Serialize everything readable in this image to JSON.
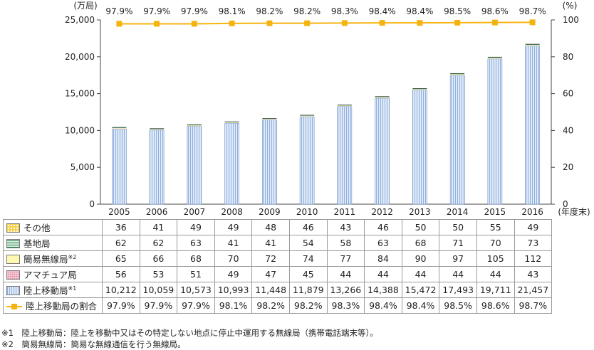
{
  "left_unit": "(万局)",
  "right_unit": "(%)",
  "x_unit": "(年度末)",
  "chart_data": {
    "type": "bar",
    "stacked": true,
    "categories": [
      "2005",
      "2006",
      "2007",
      "2008",
      "2009",
      "2010",
      "2011",
      "2012",
      "2013",
      "2014",
      "2015",
      "2016"
    ],
    "ylim": [
      0,
      25000
    ],
    "yticks": [
      "0",
      "5,000",
      "10,000",
      "15,000",
      "20,000",
      "25,000"
    ],
    "y2lim": [
      0,
      100
    ],
    "y2ticks": [
      "0",
      "20",
      "40",
      "60",
      "80",
      "100"
    ],
    "series": [
      {
        "name": "陸上移動局",
        "values": [
          10212,
          10059,
          10573,
          10993,
          11448,
          11879,
          13266,
          14388,
          15472,
          17493,
          19711,
          21457
        ],
        "color": "#9bb8e6"
      },
      {
        "name": "アマチュア局",
        "values": [
          56,
          53,
          51,
          49,
          47,
          45,
          44,
          44,
          44,
          44,
          44,
          43
        ],
        "color": "#f7d3dc"
      },
      {
        "name": "簡易無線局",
        "values": [
          65,
          66,
          68,
          70,
          72,
          74,
          77,
          84,
          90,
          97,
          105,
          112
        ],
        "color": "#fff8b0"
      },
      {
        "name": "基地局",
        "values": [
          62,
          62,
          63,
          41,
          41,
          54,
          58,
          63,
          68,
          71,
          70,
          73
        ],
        "color": "#2f8a5a"
      },
      {
        "name": "その他",
        "values": [
          36,
          41,
          49,
          49,
          48,
          46,
          43,
          46,
          50,
          50,
          55,
          49
        ],
        "color": "#f6d24e"
      }
    ],
    "line_series": {
      "name": "陸上移動局の割合",
      "values": [
        97.9,
        97.9,
        97.9,
        98.1,
        98.2,
        98.2,
        98.3,
        98.4,
        98.4,
        98.5,
        98.6,
        98.7
      ],
      "color": "#f5b30f",
      "axis": "right"
    }
  },
  "table": {
    "rows": [
      {
        "key": "other",
        "label": "その他",
        "sup": "",
        "values": [
          "36",
          "41",
          "49",
          "49",
          "48",
          "46",
          "43",
          "46",
          "50",
          "50",
          "55",
          "49"
        ]
      },
      {
        "key": "base",
        "label": "基地局",
        "sup": "",
        "values": [
          "62",
          "62",
          "63",
          "41",
          "41",
          "54",
          "58",
          "63",
          "68",
          "71",
          "70",
          "73"
        ]
      },
      {
        "key": "simple",
        "label": "簡易無線局",
        "sup": "※2",
        "values": [
          "65",
          "66",
          "68",
          "70",
          "72",
          "74",
          "77",
          "84",
          "90",
          "97",
          "105",
          "112"
        ]
      },
      {
        "key": "amateur",
        "label": "アマチュア局",
        "sup": "",
        "values": [
          "56",
          "53",
          "51",
          "49",
          "47",
          "45",
          "44",
          "44",
          "44",
          "44",
          "44",
          "43"
        ]
      },
      {
        "key": "land",
        "label": "陸上移動局",
        "sup": "※1",
        "values": [
          "10,212",
          "10,059",
          "10,573",
          "10,993",
          "11,448",
          "11,879",
          "13,266",
          "14,388",
          "15,472",
          "17,493",
          "19,711",
          "21,457"
        ]
      },
      {
        "key": "ratio",
        "label": "陸上移動局の割合",
        "sup": "",
        "values": [
          "97.9%",
          "97.9%",
          "97.9%",
          "98.1%",
          "98.2%",
          "98.2%",
          "98.3%",
          "98.4%",
          "98.4%",
          "98.5%",
          "98.6%",
          "98.7%"
        ]
      }
    ]
  },
  "notes": [
    "※1　陸上移動局：陸上を移動中又はその特定しない地点に停止中運用する無線局（携帯電話端末等）。",
    "※2　簡易無線局：簡易な無線通信を行う無線局。"
  ]
}
